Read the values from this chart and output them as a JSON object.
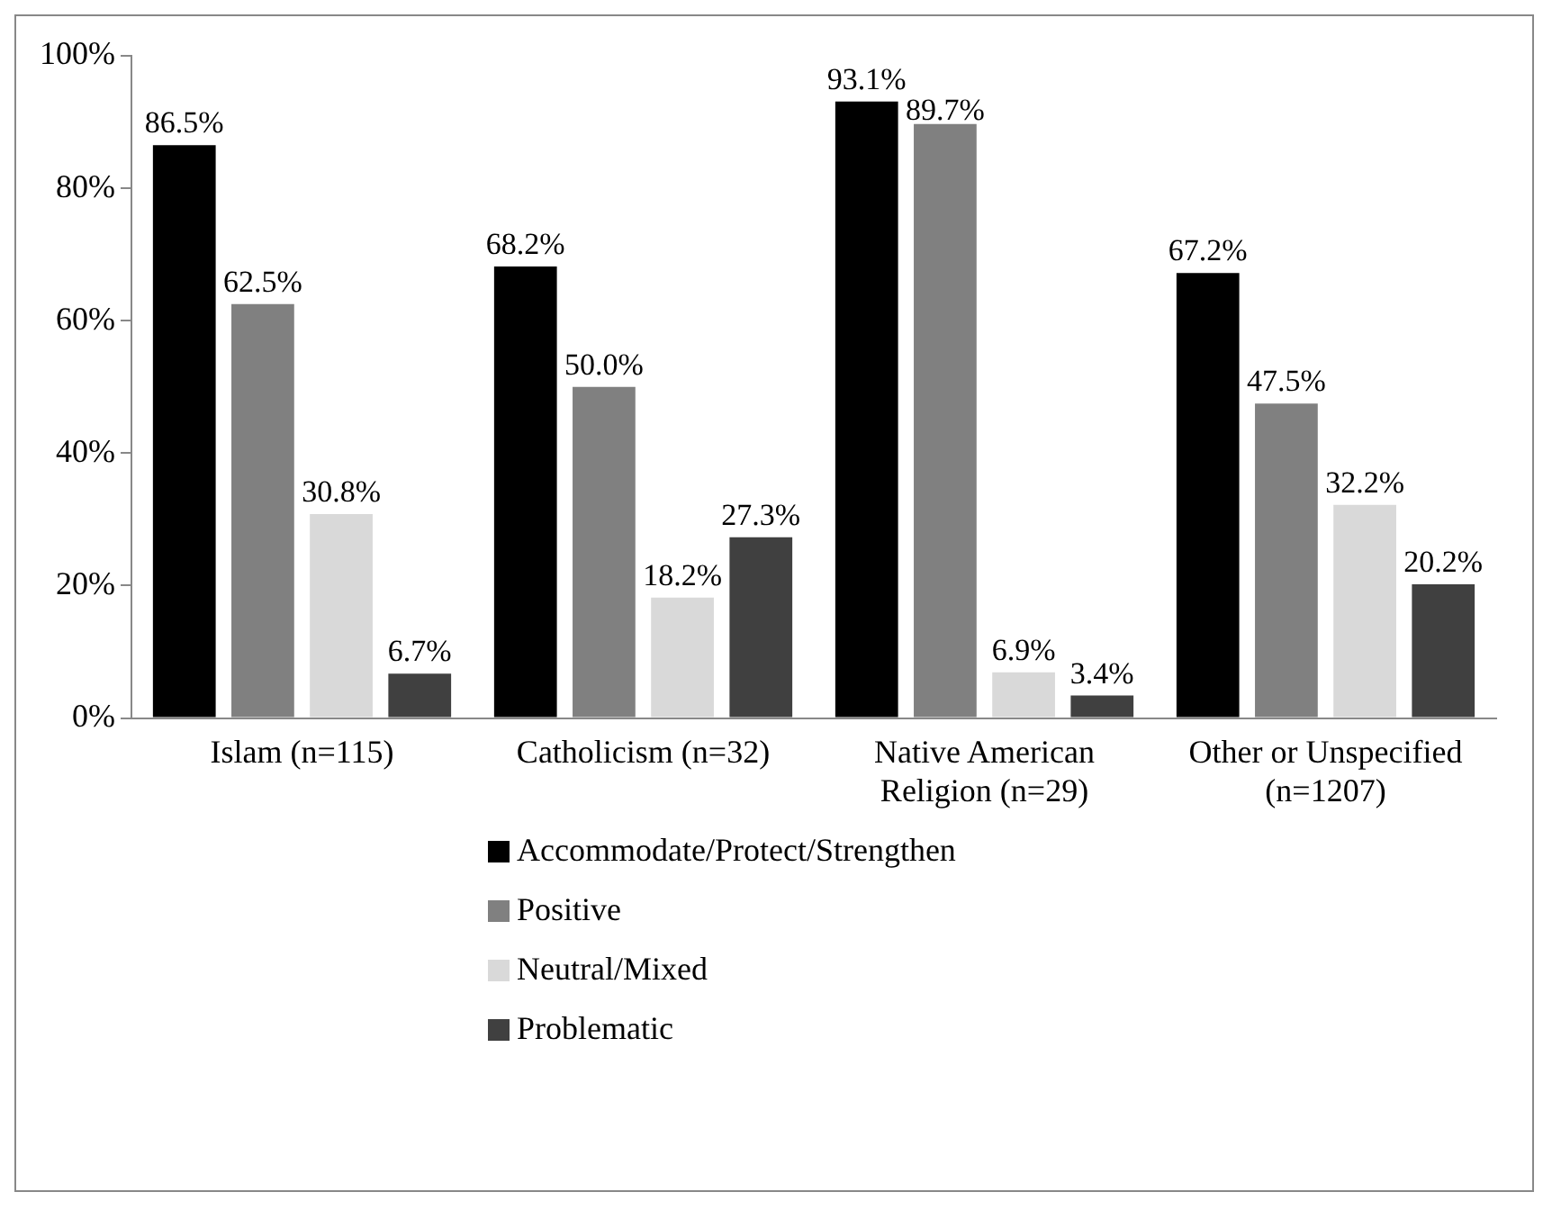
{
  "chart_data": {
    "type": "bar",
    "categories": [
      "Islam (n=115)",
      "Catholicism (n=32)",
      "Native American Religion (n=29)",
      "Other or Unspecified (n=1207)"
    ],
    "series": [
      {
        "name": "Accommodate/Protect/Strengthen",
        "color": "#000000",
        "values": [
          86.5,
          68.2,
          93.1,
          67.2
        ],
        "value_labels": [
          "86.5%",
          "68.2%",
          "93.1%",
          "67.2%"
        ]
      },
      {
        "name": "Positive",
        "color": "#808080",
        "values": [
          62.5,
          50.0,
          89.7,
          47.5
        ],
        "value_labels": [
          "62.5%",
          "50.0%",
          "89.7%",
          "47.5%"
        ]
      },
      {
        "name": "Neutral/Mixed",
        "color": "#d9d9d9",
        "values": [
          30.8,
          18.2,
          6.9,
          32.2
        ],
        "value_labels": [
          "30.8%",
          "18.2%",
          "6.9%",
          "32.2%"
        ]
      },
      {
        "name": "Problematic",
        "color": "#404040",
        "values": [
          6.7,
          27.3,
          3.4,
          20.2
        ],
        "value_labels": [
          "6.7%",
          "27.3%",
          "3.4%",
          "20.2%"
        ]
      }
    ],
    "ylim": [
      0,
      100
    ],
    "yticks": [
      {
        "value": 0,
        "label": "0%"
      },
      {
        "value": 20,
        "label": "20%"
      },
      {
        "value": 40,
        "label": "40%"
      },
      {
        "value": 60,
        "label": "60%"
      },
      {
        "value": 80,
        "label": "80%"
      },
      {
        "value": 100,
        "label": "100%"
      }
    ],
    "grid": false,
    "legend": "bottom"
  }
}
